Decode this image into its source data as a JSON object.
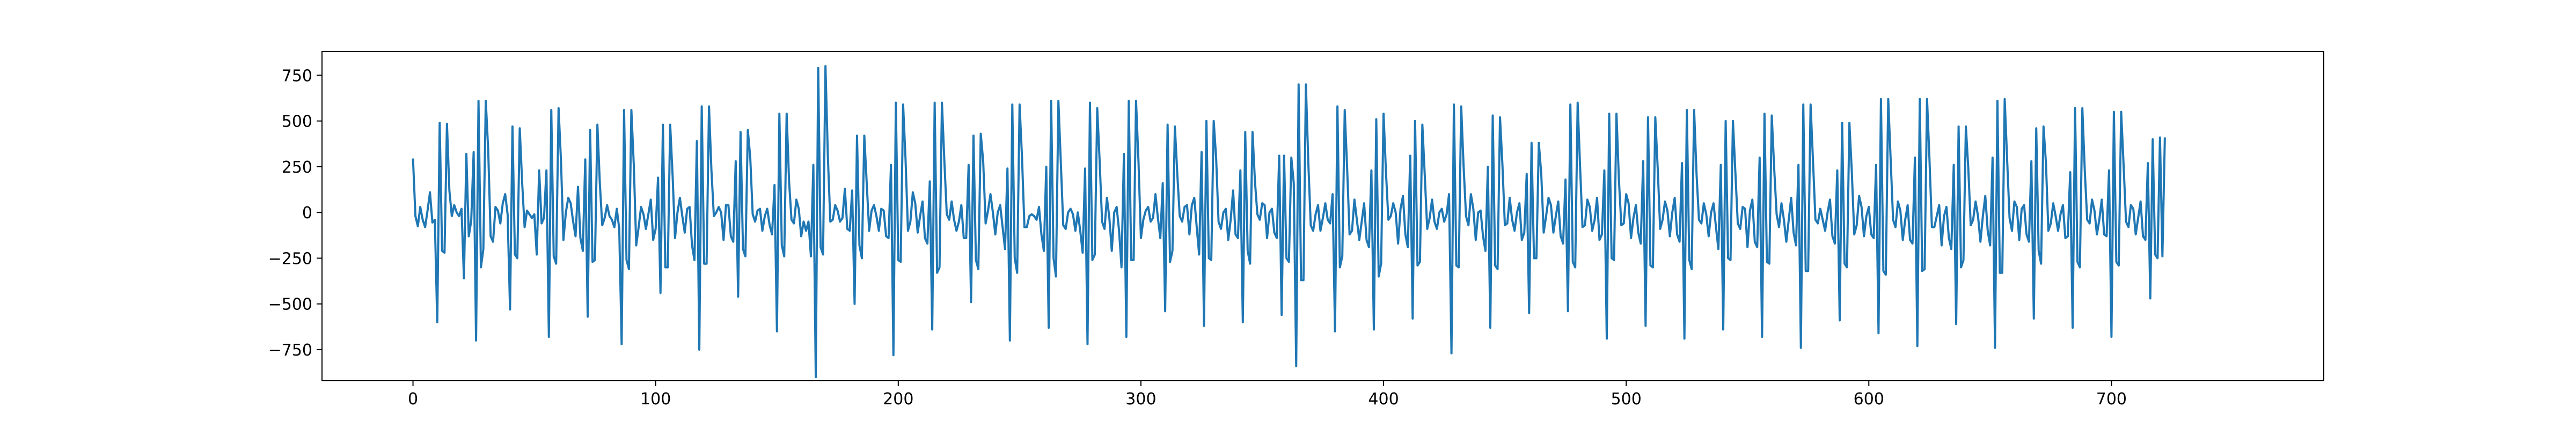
{
  "chart_data": {
    "type": "line",
    "title": "",
    "xlabel": "",
    "ylabel": "",
    "xlim": [
      -37.5,
      787.5
    ],
    "ylim": [
      -920,
      880
    ],
    "x_ticks": [
      0,
      100,
      200,
      300,
      400,
      500,
      600,
      700
    ],
    "y_ticks": [
      -750,
      -500,
      -250,
      0,
      250,
      500,
      750
    ],
    "x_tick_labels": [
      "0",
      "100",
      "200",
      "300",
      "400",
      "500",
      "600",
      "700"
    ],
    "y_tick_labels": [
      "−750",
      "−500",
      "−250",
      "0",
      "250",
      "500",
      "750"
    ],
    "grid": false,
    "legend": "none",
    "line_color": "#1f77b4",
    "series": [
      {
        "x_start": 0,
        "x_step": 1,
        "values": [
          295,
          -20,
          -75,
          30,
          -40,
          -80,
          10,
          110,
          -55,
          -40,
          -600,
          490,
          -210,
          -220,
          485,
          120,
          -20,
          40,
          0,
          -20,
          20,
          -360,
          320,
          -130,
          -45,
          330,
          -700,
          610,
          -300,
          -200,
          610,
          340,
          -130,
          -160,
          30,
          10,
          -60,
          50,
          100,
          -10,
          -530,
          470,
          -230,
          -250,
          460,
          160,
          -80,
          10,
          -10,
          -30,
          -10,
          -230,
          230,
          -60,
          -30,
          230,
          -680,
          560,
          -240,
          -280,
          570,
          280,
          -150,
          0,
          80,
          50,
          -50,
          -130,
          140,
          -140,
          -210,
          290,
          -570,
          450,
          -270,
          -260,
          480,
          160,
          -70,
          -30,
          40,
          -20,
          -40,
          -80,
          20,
          -90,
          -720,
          560,
          -260,
          -310,
          560,
          260,
          -180,
          -80,
          30,
          -10,
          -90,
          -10,
          70,
          -150,
          -90,
          190,
          -440,
          480,
          -300,
          -300,
          480,
          200,
          -140,
          0,
          80,
          -20,
          -110,
          20,
          30,
          -180,
          -260,
          390,
          -750,
          580,
          -280,
          -280,
          580,
          230,
          -20,
          0,
          30,
          0,
          -150,
          40,
          40,
          -130,
          -160,
          280,
          -460,
          440,
          -200,
          -240,
          450,
          300,
          -10,
          -50,
          10,
          20,
          -100,
          -20,
          20,
          -70,
          -120,
          150,
          -650,
          540,
          -180,
          -240,
          540,
          170,
          -40,
          -60,
          70,
          20,
          -130,
          -50,
          -100,
          -50,
          -240,
          260,
          -900,
          790,
          -190,
          -230,
          800,
          300,
          -50,
          -40,
          40,
          10,
          -50,
          -30,
          130,
          -90,
          -100,
          120,
          -500,
          420,
          -180,
          -250,
          420,
          160,
          -100,
          10,
          40,
          -20,
          -100,
          20,
          10,
          -130,
          -140,
          260,
          -780,
          600,
          -260,
          -270,
          590,
          290,
          -100,
          -50,
          110,
          50,
          -110,
          -20,
          60,
          -140,
          -170,
          170,
          -640,
          600,
          -330,
          -300,
          600,
          280,
          -10,
          -40,
          60,
          -40,
          -100,
          -50,
          40,
          -140,
          -140,
          260,
          -490,
          420,
          -260,
          -310,
          430,
          280,
          -60,
          10,
          100,
          0,
          -120,
          0,
          40,
          -80,
          -200,
          240,
          -700,
          590,
          -250,
          -330,
          590,
          300,
          -80,
          -80,
          -20,
          -10,
          -20,
          -40,
          30,
          -120,
          -210,
          250,
          -630,
          610,
          -250,
          -350,
          610,
          270,
          -70,
          -90,
          0,
          20,
          -10,
          -100,
          0,
          -100,
          -220,
          240,
          -720,
          600,
          -260,
          -230,
          570,
          280,
          -50,
          -90,
          80,
          -30,
          -210,
          0,
          30,
          -100,
          -300,
          320,
          -680,
          610,
          -260,
          -260,
          610,
          280,
          -140,
          -40,
          10,
          30,
          -50,
          -30,
          100,
          -30,
          -140,
          160,
          -540,
          480,
          -270,
          -210,
          470,
          210,
          -20,
          -50,
          30,
          40,
          -120,
          40,
          80,
          -80,
          -230,
          330,
          -620,
          500,
          -250,
          -260,
          500,
          300,
          -50,
          -90,
          0,
          20,
          -150,
          -40,
          120,
          -120,
          -140,
          230,
          -600,
          440,
          -210,
          -280,
          440,
          170,
          -10,
          -40,
          50,
          40,
          -140,
          0,
          20,
          -110,
          -140,
          310,
          -560,
          310,
          -250,
          -270,
          300,
          160,
          -840,
          700,
          -370,
          -370,
          700,
          270,
          -70,
          -100,
          -10,
          40,
          -100,
          -30,
          50,
          -40,
          -60,
          100,
          -650,
          580,
          -300,
          -240,
          560,
          240,
          -120,
          -100,
          70,
          -40,
          -150,
          -50,
          50,
          -150,
          -190,
          230,
          -640,
          510,
          -350,
          -280,
          540,
          220,
          -40,
          -20,
          50,
          0,
          -170,
          20,
          90,
          -120,
          -190,
          310,
          -580,
          500,
          -290,
          -270,
          480,
          200,
          -90,
          -30,
          70,
          -50,
          -90,
          0,
          20,
          -50,
          -10,
          100,
          -770,
          590,
          -290,
          -300,
          580,
          250,
          -20,
          -70,
          100,
          20,
          -150,
          0,
          10,
          -130,
          -210,
          250,
          -630,
          530,
          -290,
          -310,
          520,
          260,
          -70,
          -60,
          80,
          -40,
          -100,
          0,
          50,
          -150,
          -110,
          210,
          -550,
          380,
          -250,
          -250,
          380,
          210,
          -110,
          -20,
          80,
          40,
          -110,
          -20,
          60,
          -130,
          -170,
          180,
          -540,
          590,
          -270,
          -300,
          600,
          250,
          -80,
          -70,
          70,
          30,
          -100,
          -40,
          80,
          -150,
          -120,
          230,
          -690,
          540,
          -250,
          -260,
          540,
          180,
          -70,
          -60,
          100,
          50,
          -140,
          -30,
          40,
          -110,
          -170,
          280,
          -620,
          520,
          -290,
          -300,
          520,
          240,
          -90,
          -40,
          60,
          10,
          -130,
          0,
          80,
          -120,
          -160,
          270,
          -690,
          560,
          -260,
          -310,
          560,
          210,
          -40,
          -60,
          50,
          -10,
          -130,
          0,
          50,
          -80,
          -200,
          260,
          -640,
          500,
          -250,
          -260,
          500,
          220,
          -60,
          -90,
          30,
          20,
          -190,
          10,
          70,
          -160,
          -190,
          300,
          -680,
          540,
          -270,
          -280,
          530,
          240,
          -10,
          -80,
          50,
          -40,
          -160,
          -40,
          80,
          -110,
          -180,
          260,
          -740,
          590,
          -320,
          -320,
          590,
          280,
          -40,
          -60,
          20,
          -40,
          -100,
          0,
          70,
          -130,
          -170,
          230,
          -590,
          490,
          -280,
          -300,
          490,
          220,
          -120,
          -70,
          90,
          30,
          -130,
          -20,
          30,
          -120,
          -140,
          260,
          -660,
          620,
          -320,
          -340,
          620,
          290,
          -40,
          -80,
          60,
          10,
          -150,
          -40,
          40,
          -150,
          -170,
          300,
          -730,
          620,
          -320,
          -310,
          620,
          290,
          -80,
          -80,
          -20,
          40,
          -180,
          -20,
          30,
          -140,
          -200,
          260,
          -610,
          470,
          -300,
          -260,
          470,
          240,
          -70,
          -40,
          60,
          -20,
          -160,
          -20,
          90,
          -100,
          -180,
          300,
          -740,
          610,
          -330,
          -330,
          620,
          290,
          -30,
          -100,
          60,
          30,
          -150,
          20,
          40,
          -120,
          -160,
          280,
          -580,
          460,
          -210,
          -280,
          470,
          270,
          -100,
          -60,
          50,
          -20,
          -100,
          -10,
          40,
          -140,
          -130,
          220,
          -630,
          570,
          -270,
          -300,
          570,
          230,
          -40,
          -60,
          70,
          10,
          -120,
          -40,
          70,
          -120,
          -130,
          230,
          -680,
          550,
          -270,
          -290,
          550,
          260,
          -50,
          -80,
          40,
          20,
          -120,
          -30,
          60,
          -130,
          -150,
          270,
          -470,
          400,
          -230,
          -250,
          410,
          -240,
          410
        ]
      }
    ]
  }
}
